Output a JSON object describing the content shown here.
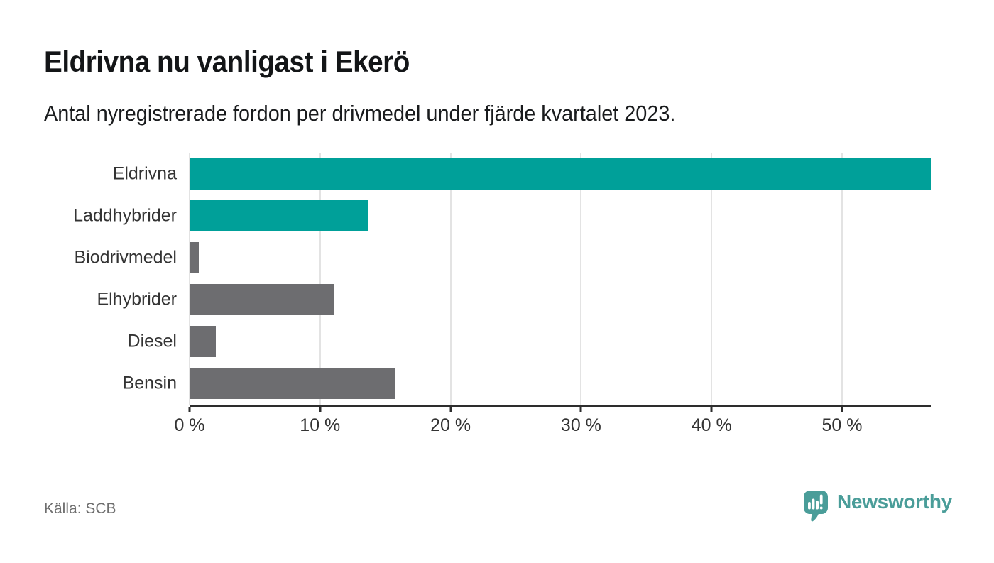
{
  "chart_data": {
    "type": "bar",
    "orientation": "horizontal",
    "title": "Eldrivna nu vanligast i Ekerö",
    "subtitle": "Antal nyregistrerade fordon per drivmedel under fjärde kvartalet 2023.",
    "categories": [
      "Eldrivna",
      "Laddhybrider",
      "Biodrivmedel",
      "Elhybrider",
      "Diesel",
      "Bensin"
    ],
    "values": [
      56.8,
      13.7,
      0.7,
      11.1,
      2.0,
      15.7
    ],
    "unit": "%",
    "bar_colors": [
      "#00a099",
      "#00a099",
      "#6d6d70",
      "#6d6d70",
      "#6d6d70",
      "#6d6d70"
    ],
    "xlim": [
      0,
      56.8
    ],
    "x_ticks": [
      {
        "value": 0,
        "label": "0 %"
      },
      {
        "value": 10,
        "label": "10 %"
      },
      {
        "value": 20,
        "label": "20 %"
      },
      {
        "value": 30,
        "label": "30 %"
      },
      {
        "value": 40,
        "label": "40 %"
      },
      {
        "value": 50,
        "label": "50 %"
      }
    ],
    "grid": true,
    "legend": false,
    "xlabel": "",
    "ylabel": ""
  },
  "footer": {
    "source": "Källa: SCB",
    "brand": "Newsworthy"
  },
  "colors": {
    "accent_teal": "#00a099",
    "bar_gray": "#6d6d70",
    "axis": "#2d2d2d",
    "gridline": "#e3e3e3",
    "text_dark": "#131517",
    "text_muted": "#6f6f6f",
    "brand_teal": "#4a9d99"
  }
}
